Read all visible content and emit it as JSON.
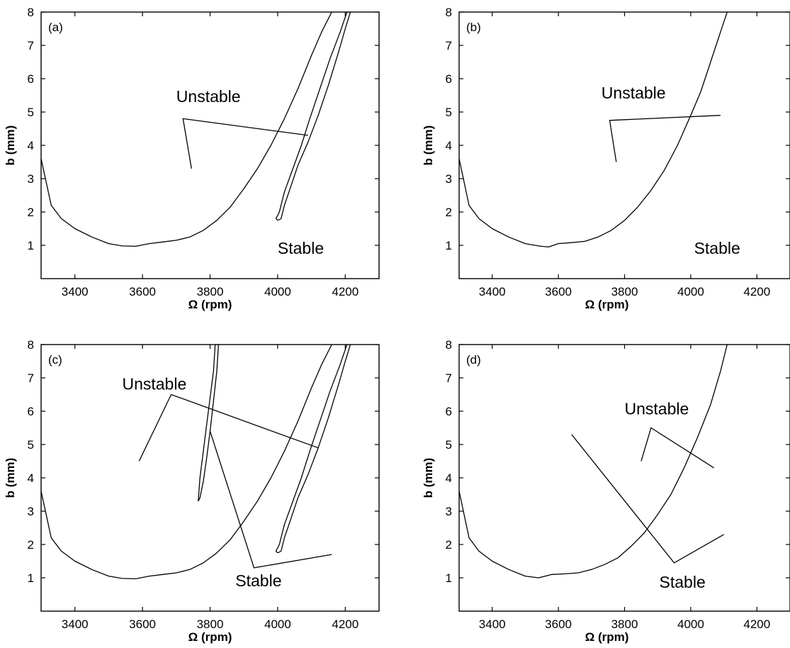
{
  "chart_data": [
    {
      "type": "line",
      "panel_label": "(a)",
      "xlabel": "Ω (rpm)",
      "ylabel": "b (mm)",
      "xlim": [
        3300,
        4300
      ],
      "ylim": [
        0,
        8
      ],
      "xticks": [
        3400,
        3600,
        3800,
        4000,
        4200
      ],
      "yticks": [
        1,
        2,
        3,
        4,
        5,
        6,
        7,
        8
      ],
      "series": [
        {
          "x": [
            3300,
            3330,
            3360,
            3400,
            3450,
            3500,
            3540,
            3580,
            3620,
            3660,
            3700,
            3740,
            3780,
            3820,
            3860,
            3900,
            3940,
            3980,
            4020,
            4060,
            4100,
            4130,
            4160
          ],
          "y": [
            3.6,
            2.2,
            1.8,
            1.5,
            1.25,
            1.05,
            0.98,
            0.97,
            1.05,
            1.1,
            1.15,
            1.25,
            1.45,
            1.75,
            2.15,
            2.7,
            3.3,
            4.0,
            4.8,
            5.7,
            6.7,
            7.4,
            8.0
          ]
        },
        {
          "x": [
            4000,
            4010,
            4020,
            4040,
            4060,
            4090,
            4120,
            4150,
            4180,
            4200,
            4215,
            4205,
            4185,
            4155,
            4125,
            4095,
            4070,
            4045,
            4020,
            4005,
            3995,
            4000
          ],
          "y": [
            1.75,
            1.8,
            2.2,
            2.8,
            3.4,
            4.1,
            4.9,
            5.8,
            6.8,
            7.5,
            8.0,
            8.0,
            7.4,
            6.6,
            5.7,
            4.8,
            4.0,
            3.3,
            2.6,
            2.0,
            1.8,
            1.75
          ]
        }
      ],
      "annotations": [
        {
          "text": "Unstable",
          "x": 3700,
          "y": 5.3
        },
        {
          "text": "Stable",
          "x": 4000,
          "y": 0.75
        }
      ],
      "leaders": [
        [
          [
            3745,
            3.3
          ],
          [
            3720,
            4.8
          ],
          [
            4090,
            4.3
          ]
        ]
      ]
    },
    {
      "type": "line",
      "panel_label": "(b)",
      "xlabel": "Ω (rpm)",
      "ylabel": "b (mm)",
      "xlim": [
        3300,
        4300
      ],
      "ylim": [
        0,
        8
      ],
      "xticks": [
        3400,
        3600,
        3800,
        4000,
        4200
      ],
      "yticks": [
        1,
        2,
        3,
        4,
        5,
        6,
        7,
        8
      ],
      "series": [
        {
          "x": [
            3300,
            3330,
            3360,
            3400,
            3450,
            3500,
            3540,
            3570,
            3600,
            3640,
            3680,
            3720,
            3760,
            3800,
            3840,
            3880,
            3920,
            3960,
            4000,
            4030,
            4060,
            4090,
            4110
          ],
          "y": [
            3.6,
            2.2,
            1.8,
            1.5,
            1.25,
            1.05,
            0.98,
            0.95,
            1.05,
            1.08,
            1.12,
            1.25,
            1.45,
            1.75,
            2.15,
            2.65,
            3.25,
            4.0,
            4.9,
            5.6,
            6.5,
            7.4,
            8.0
          ]
        }
      ],
      "annotations": [
        {
          "text": "Unstable",
          "x": 3730,
          "y": 5.4
        },
        {
          "text": "Stable",
          "x": 4010,
          "y": 0.75
        }
      ],
      "leaders": [
        [
          [
            3775,
            3.5
          ],
          [
            3755,
            4.75
          ],
          [
            4090,
            4.9
          ]
        ]
      ]
    },
    {
      "type": "line",
      "panel_label": "(c)",
      "xlabel": "Ω (rpm)",
      "ylabel": "b (mm)",
      "xlim": [
        3300,
        4300
      ],
      "ylim": [
        0,
        8
      ],
      "xticks": [
        3400,
        3600,
        3800,
        4000,
        4200
      ],
      "yticks": [
        1,
        2,
        3,
        4,
        5,
        6,
        7,
        8
      ],
      "series": [
        {
          "x": [
            3300,
            3330,
            3360,
            3400,
            3450,
            3500,
            3540,
            3580,
            3620,
            3660,
            3700,
            3740,
            3780,
            3820,
            3860,
            3900,
            3940,
            3980,
            4020,
            4060,
            4100,
            4130,
            4160
          ],
          "y": [
            3.6,
            2.2,
            1.8,
            1.5,
            1.25,
            1.05,
            0.98,
            0.97,
            1.05,
            1.1,
            1.15,
            1.25,
            1.45,
            1.75,
            2.15,
            2.7,
            3.3,
            4.0,
            4.8,
            5.7,
            6.7,
            7.4,
            8.0
          ]
        },
        {
          "x": [
            4000,
            4010,
            4020,
            4040,
            4060,
            4090,
            4120,
            4150,
            4180,
            4200,
            4215,
            4205,
            4185,
            4155,
            4125,
            4095,
            4070,
            4045,
            4020,
            4005,
            3995,
            4000
          ],
          "y": [
            1.75,
            1.8,
            2.2,
            2.8,
            3.4,
            4.1,
            4.9,
            5.8,
            6.8,
            7.5,
            8.0,
            8.0,
            7.4,
            6.6,
            5.7,
            4.8,
            4.0,
            3.3,
            2.6,
            2.0,
            1.8,
            1.75
          ]
        },
        {
          "x": [
            3765,
            3770,
            3780,
            3790,
            3800,
            3810,
            3815,
            3825,
            3820,
            3810,
            3800,
            3790,
            3780,
            3770,
            3765
          ],
          "y": [
            3.3,
            4.0,
            4.8,
            5.6,
            6.4,
            7.2,
            8.0,
            8.0,
            7.2,
            6.3,
            5.4,
            4.6,
            3.9,
            3.4,
            3.3
          ]
        }
      ],
      "annotations": [
        {
          "text": "Unstable",
          "x": 3540,
          "y": 6.65
        },
        {
          "text": "Stable",
          "x": 3875,
          "y": 0.75
        }
      ],
      "leaders": [
        [
          [
            3590,
            4.5
          ],
          [
            3685,
            6.5
          ],
          [
            4120,
            4.9
          ]
        ],
        [
          [
            3800,
            5.4
          ],
          [
            3930,
            1.3
          ],
          [
            4160,
            1.7
          ]
        ]
      ]
    },
    {
      "type": "line",
      "panel_label": "(d)",
      "xlabel": "Ω (rpm)",
      "ylabel": "b (mm)",
      "xlim": [
        3300,
        4300
      ],
      "ylim": [
        0,
        8
      ],
      "xticks": [
        3400,
        3600,
        3800,
        4000,
        4200
      ],
      "yticks": [
        1,
        2,
        3,
        4,
        5,
        6,
        7,
        8
      ],
      "series": [
        {
          "x": [
            3300,
            3330,
            3360,
            3400,
            3450,
            3500,
            3540,
            3580,
            3620,
            3660,
            3700,
            3740,
            3780,
            3820,
            3860,
            3900,
            3940,
            3980,
            4020,
            4060,
            4090,
            4110
          ],
          "y": [
            3.6,
            2.2,
            1.8,
            1.5,
            1.25,
            1.05,
            1.0,
            1.1,
            1.12,
            1.15,
            1.25,
            1.4,
            1.6,
            1.95,
            2.35,
            2.9,
            3.5,
            4.3,
            5.2,
            6.2,
            7.2,
            8.0
          ]
        }
      ],
      "annotations": [
        {
          "text": "Unstable",
          "x": 3800,
          "y": 5.9
        },
        {
          "text": "Stable",
          "x": 3905,
          "y": 0.7
        }
      ],
      "leaders": [
        [
          [
            3850,
            4.5
          ],
          [
            3880,
            5.5
          ],
          [
            4070,
            4.3
          ]
        ],
        [
          [
            3640,
            5.3
          ],
          [
            3950,
            1.45
          ],
          [
            4100,
            2.3
          ]
        ]
      ]
    }
  ]
}
